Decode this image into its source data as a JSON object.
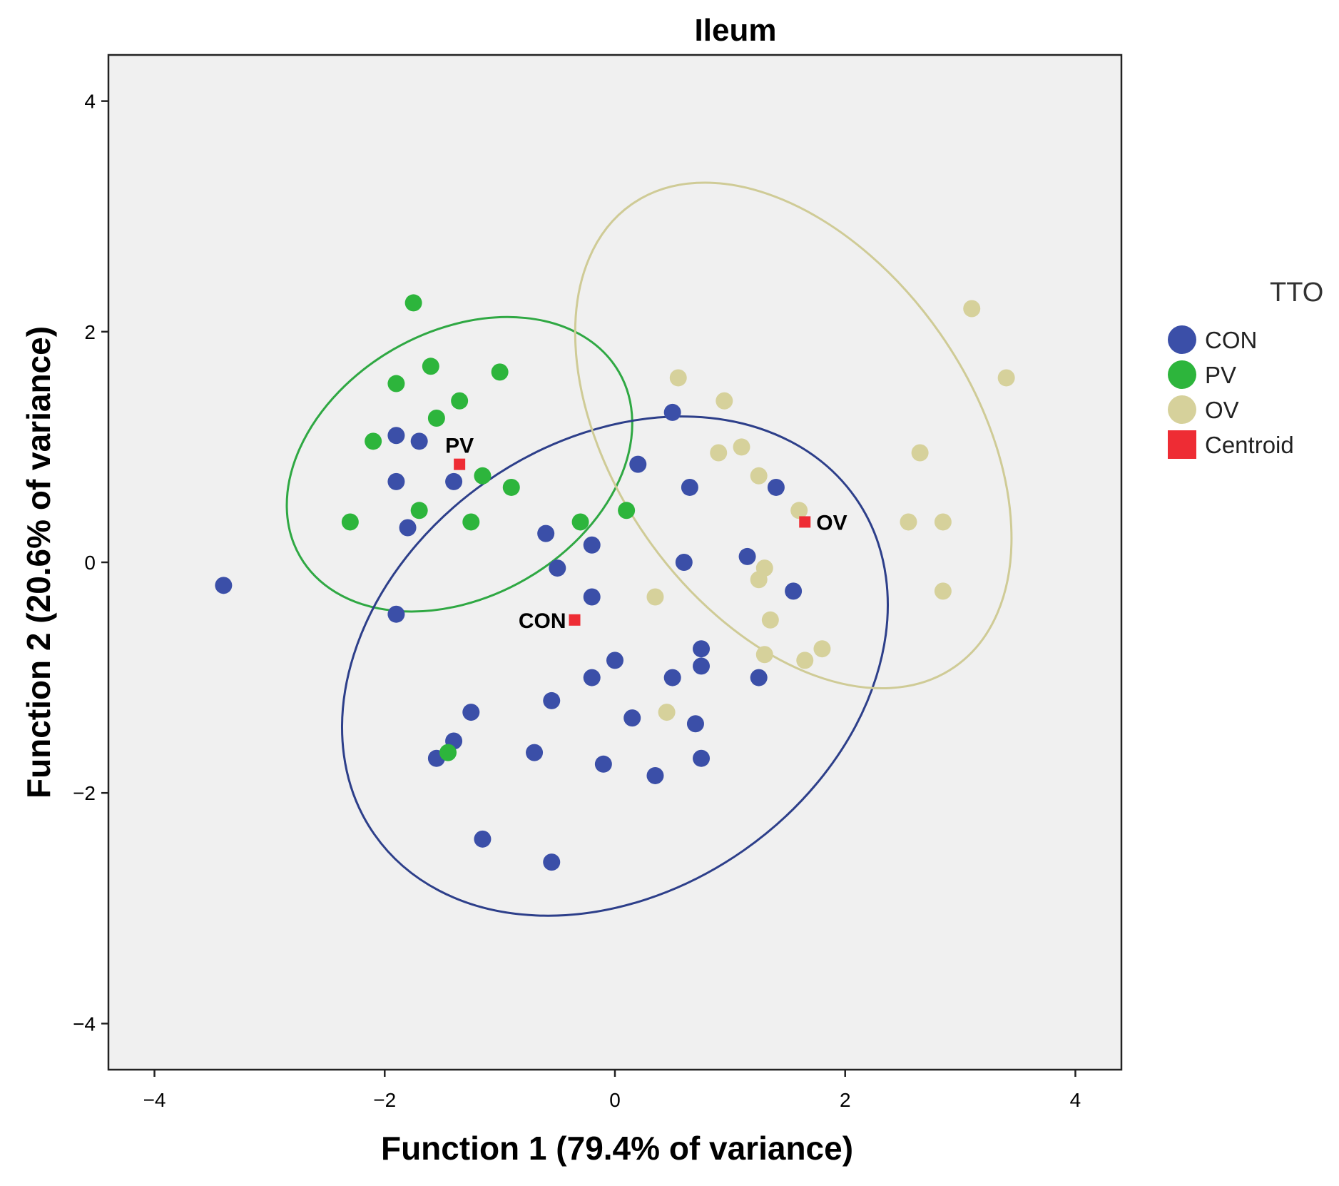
{
  "chart_data": {
    "type": "scatter",
    "title": "Ileum",
    "xlabel": "Function 1 (79.4% of variance)",
    "ylabel": "Function 2 (20.6% of variance)",
    "xlim": [
      -4.4,
      4.4
    ],
    "ylim": [
      -4.4,
      4.4
    ],
    "xticks": [
      -4,
      -2,
      0,
      2,
      4
    ],
    "yticks": [
      -4,
      -2,
      0,
      2,
      4
    ],
    "xtick_labels": [
      "−4",
      "−2",
      "0",
      "2",
      "4"
    ],
    "ytick_labels": [
      "−4",
      "−2",
      "0",
      "2",
      "4"
    ],
    "grid": false,
    "background": "#f0f0f0",
    "legend": {
      "title": "TTO",
      "placement": "right",
      "entries": [
        {
          "label": "CON",
          "color": "#3b4fa8",
          "marker": "circle"
        },
        {
          "label": "PV",
          "color": "#2db53c",
          "marker": "circle"
        },
        {
          "label": "OV",
          "color": "#d6d19b",
          "marker": "circle"
        },
        {
          "label": "Centroid",
          "color": "#ee2c34",
          "marker": "square"
        }
      ]
    },
    "series": [
      {
        "name": "CON",
        "color": "#3b4fa8",
        "points": [
          [
            -3.4,
            -0.2
          ],
          [
            -1.9,
            1.1
          ],
          [
            -1.7,
            1.05
          ],
          [
            -1.9,
            0.7
          ],
          [
            -1.8,
            0.3
          ],
          [
            -1.4,
            0.7
          ],
          [
            -1.9,
            -0.45
          ],
          [
            -0.6,
            0.25
          ],
          [
            -0.5,
            -0.05
          ],
          [
            -0.2,
            0.15
          ],
          [
            -0.2,
            -0.3
          ],
          [
            0.2,
            0.85
          ],
          [
            0.5,
            1.3
          ],
          [
            0.65,
            0.65
          ],
          [
            1.4,
            0.65
          ],
          [
            0.6,
            0.0
          ],
          [
            1.15,
            0.05
          ],
          [
            1.55,
            -0.25
          ],
          [
            0.75,
            -0.75
          ],
          [
            0.75,
            -0.9
          ],
          [
            0.0,
            -0.85
          ],
          [
            -0.2,
            -1.0
          ],
          [
            0.5,
            -1.0
          ],
          [
            1.25,
            -1.0
          ],
          [
            0.15,
            -1.35
          ],
          [
            0.7,
            -1.4
          ],
          [
            -0.55,
            -1.2
          ],
          [
            -1.25,
            -1.3
          ],
          [
            -1.4,
            -1.55
          ],
          [
            -1.55,
            -1.7
          ],
          [
            -0.7,
            -1.65
          ],
          [
            -0.1,
            -1.75
          ],
          [
            0.35,
            -1.85
          ],
          [
            0.75,
            -1.7
          ],
          [
            -1.15,
            -2.4
          ],
          [
            -0.55,
            -2.6
          ]
        ]
      },
      {
        "name": "PV",
        "color": "#2db53c",
        "points": [
          [
            -1.75,
            2.25
          ],
          [
            -1.6,
            1.7
          ],
          [
            -1.9,
            1.55
          ],
          [
            -1.0,
            1.65
          ],
          [
            -1.35,
            1.4
          ],
          [
            -1.55,
            1.25
          ],
          [
            -2.1,
            1.05
          ],
          [
            -1.15,
            0.75
          ],
          [
            -0.9,
            0.65
          ],
          [
            -1.7,
            0.45
          ],
          [
            -1.25,
            0.35
          ],
          [
            -2.3,
            0.35
          ],
          [
            -0.3,
            0.35
          ],
          [
            0.1,
            0.45
          ],
          [
            -1.45,
            -1.65
          ]
        ]
      },
      {
        "name": "OV",
        "color": "#d6d19b",
        "points": [
          [
            3.1,
            2.2
          ],
          [
            3.4,
            1.6
          ],
          [
            0.55,
            1.6
          ],
          [
            0.95,
            1.4
          ],
          [
            1.1,
            1.0
          ],
          [
            0.9,
            0.95
          ],
          [
            1.25,
            0.75
          ],
          [
            2.65,
            0.95
          ],
          [
            1.6,
            0.45
          ],
          [
            2.55,
            0.35
          ],
          [
            2.85,
            0.35
          ],
          [
            1.3,
            -0.05
          ],
          [
            1.25,
            -0.15
          ],
          [
            0.35,
            -0.3
          ],
          [
            1.35,
            -0.5
          ],
          [
            2.85,
            -0.25
          ],
          [
            1.3,
            -0.8
          ],
          [
            1.65,
            -0.85
          ],
          [
            1.8,
            -0.75
          ],
          [
            0.45,
            -1.3
          ]
        ]
      }
    ],
    "centroids": [
      {
        "label": "PV",
        "x": -1.35,
        "y": 0.85,
        "color": "#ee2c34"
      },
      {
        "label": "CON",
        "x": -0.35,
        "y": -0.5,
        "color": "#ee2c34"
      },
      {
        "label": "OV",
        "x": 1.65,
        "y": 0.35,
        "color": "#ee2c34"
      }
    ],
    "ellipses": [
      {
        "group": "PV",
        "color": "#2fa843",
        "cx": -1.35,
        "cy": 0.85,
        "rx": 1.6,
        "ry": 1.15,
        "rotation_deg": 30
      },
      {
        "group": "CON",
        "color": "#2d3f8a",
        "cx": 0.0,
        "cy": -0.9,
        "rx": 2.55,
        "ry": 1.95,
        "rotation_deg": 35
      },
      {
        "group": "OV",
        "color": "#cfcb96",
        "cx": 1.55,
        "cy": 1.1,
        "rx": 2.45,
        "ry": 1.55,
        "rotation_deg": -55
      }
    ]
  }
}
